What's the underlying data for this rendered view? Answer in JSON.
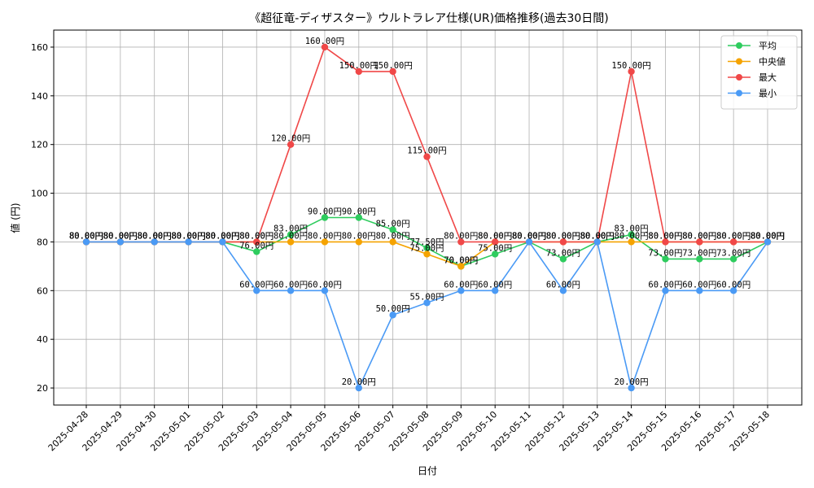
{
  "chart_data": {
    "type": "line",
    "title": "《超征竜-ディザスター》ウルトラレア仕様(UR)価格推移(過去30日間)",
    "xlabel": "日付",
    "ylabel": "値 (円)",
    "x": [
      "2025-04-28",
      "2025-04-29",
      "2025-04-30",
      "2025-05-01",
      "2025-05-02",
      "2025-05-03",
      "2025-05-04",
      "2025-05-05",
      "2025-05-06",
      "2025-05-07",
      "2025-05-08",
      "2025-05-09",
      "2025-05-10",
      "2025-05-11",
      "2025-05-12",
      "2025-05-13",
      "2025-05-14",
      "2025-05-15",
      "2025-05-16",
      "2025-05-17",
      "2025-05-18"
    ],
    "ylim": [
      13,
      167
    ],
    "yticks": [
      20,
      40,
      60,
      80,
      100,
      120,
      140,
      160
    ],
    "grid": true,
    "legend_position": "top-right",
    "label_suffix": "円",
    "series": [
      {
        "name": "平均",
        "color": "#2ecc5e",
        "values": [
          80,
          80,
          80,
          80,
          80,
          76,
          83,
          90,
          90,
          85,
          77.5,
          70,
          75,
          80,
          73,
          80,
          83,
          73,
          73,
          73,
          80
        ]
      },
      {
        "name": "中央値",
        "color": "#f5a300",
        "values": [
          80,
          80,
          80,
          80,
          80,
          80,
          80,
          80,
          80,
          80,
          75,
          70,
          80,
          80,
          80,
          80,
          80,
          80,
          80,
          80,
          80
        ]
      },
      {
        "name": "最大",
        "color": "#f04848",
        "values": [
          80,
          80,
          80,
          80,
          80,
          80,
          120,
          160,
          150,
          150,
          115,
          80,
          80,
          80,
          80,
          80,
          150,
          80,
          80,
          80,
          80
        ]
      },
      {
        "name": "最小",
        "color": "#4a9af5",
        "values": [
          80,
          80,
          80,
          80,
          80,
          60,
          60,
          60,
          20,
          50,
          55,
          60,
          60,
          80,
          60,
          80,
          20,
          60,
          60,
          60,
          80
        ]
      }
    ]
  }
}
